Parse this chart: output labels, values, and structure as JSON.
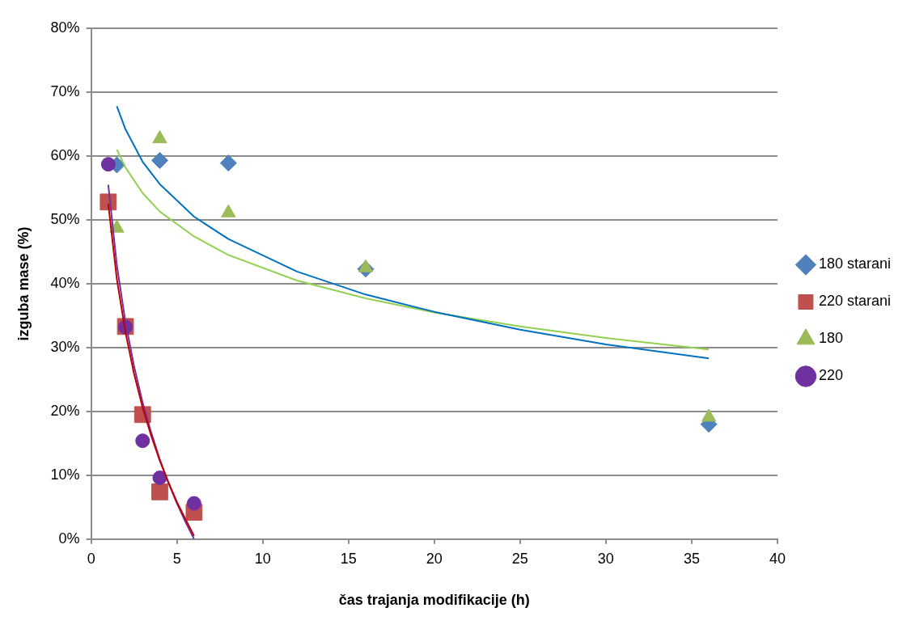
{
  "chart_data": {
    "type": "scatter",
    "xlabel": "čas trajanja modifikacije (h)",
    "ylabel": "izguba mase (%)",
    "xlim": [
      0,
      40
    ],
    "xticks": [
      0,
      5,
      10,
      15,
      20,
      25,
      30,
      35,
      40
    ],
    "ylim": [
      0,
      80
    ],
    "yticks": [
      {
        "value": 0,
        "label": "0%"
      },
      {
        "value": 10,
        "label": "10%"
      },
      {
        "value": 20,
        "label": "20%"
      },
      {
        "value": 30,
        "label": "30%"
      },
      {
        "value": 40,
        "label": "40%"
      },
      {
        "value": 50,
        "label": "50%"
      },
      {
        "value": 60,
        "label": "60%"
      },
      {
        "value": 70,
        "label": "70%"
      },
      {
        "value": 80,
        "label": "80%"
      }
    ],
    "grid": "y",
    "legend": "right",
    "series": [
      {
        "type": "line",
        "marker": "none",
        "color": "#0070c0",
        "x": [
          1.5,
          2,
          3,
          4,
          6,
          8,
          12,
          16,
          20,
          25,
          30,
          36
        ],
        "values": [
          67.8,
          64.2,
          59.1,
          55.6,
          50.5,
          47.0,
          41.9,
          38.3,
          35.6,
          32.8,
          30.5,
          28.3
        ]
      },
      {
        "type": "line",
        "marker": "none",
        "color": "#92d050",
        "x": [
          1.5,
          2,
          3,
          4,
          6,
          8,
          12,
          16,
          20,
          25,
          30,
          36
        ],
        "values": [
          61.0,
          58.2,
          54.2,
          51.3,
          47.4,
          44.5,
          40.5,
          37.7,
          35.5,
          33.3,
          31.5,
          29.7
        ]
      },
      {
        "type": "line",
        "marker": "none",
        "color": "#c00000",
        "x": [
          1,
          1.5,
          2,
          2.5,
          3,
          3.5,
          4,
          4.5,
          5,
          5.5,
          6
        ],
        "values": [
          52.5,
          40.7,
          32.4,
          25.9,
          20.6,
          16.2,
          12.3,
          8.9,
          5.8,
          3.1,
          0.5
        ]
      },
      {
        "type": "line",
        "marker": "none",
        "color": "#7030a0",
        "x": [
          1,
          1.5,
          2,
          2.5,
          3,
          3.5,
          4,
          4.5,
          5,
          5.5,
          6
        ],
        "values": [
          55.5,
          42.9,
          34.0,
          27.1,
          21.4,
          16.7,
          12.5,
          8.9,
          5.6,
          2.7,
          0.0
        ]
      },
      {
        "name": "180 starani",
        "type": "scatter",
        "marker": "diamond",
        "color": "#4f81bd",
        "x": [
          1.5,
          4,
          8,
          16,
          36
        ],
        "values": [
          58.6,
          59.3,
          58.9,
          42.3,
          18.0
        ]
      },
      {
        "name": "220 starani",
        "type": "scatter",
        "marker": "square",
        "color": "#c0504d",
        "x": [
          1,
          2,
          3,
          4,
          6
        ],
        "values": [
          52.8,
          33.3,
          19.5,
          7.4,
          4.2
        ]
      },
      {
        "name": "180",
        "type": "scatter",
        "marker": "triangle",
        "color": "#9bbb59",
        "x": [
          1.5,
          4,
          8,
          16,
          36
        ],
        "values": [
          48.7,
          62.7,
          51.1,
          42.5,
          19.1
        ]
      },
      {
        "name": "220",
        "type": "scatter",
        "marker": "circle",
        "color": "#7030a0",
        "x": [
          1,
          2,
          3,
          4,
          6
        ],
        "values": [
          58.7,
          33.2,
          15.4,
          9.6,
          5.6
        ]
      }
    ]
  }
}
